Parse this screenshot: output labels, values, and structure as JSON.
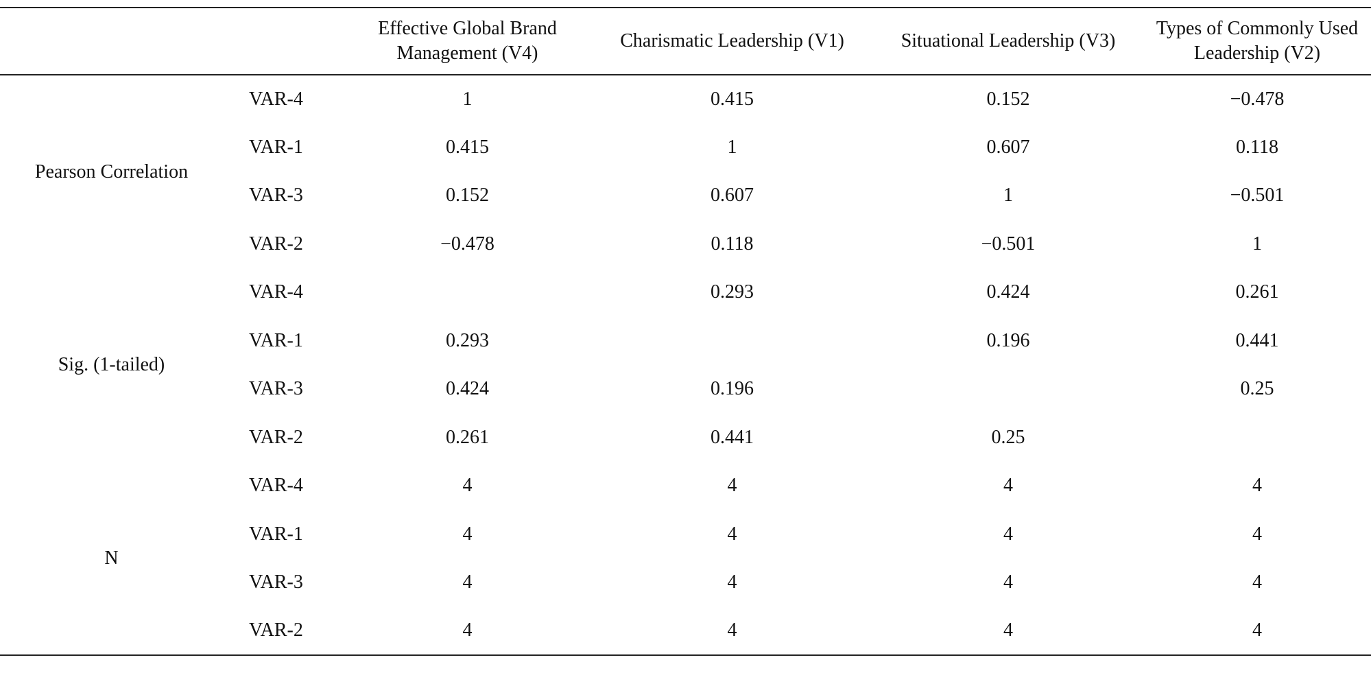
{
  "table": {
    "header": [
      "Effective Global Brand Management (V4)",
      "Charismatic Leadership (V1)",
      "Situational Leadership (V3)",
      "Types of Commonly Used Leadership (V2)"
    ],
    "groups": [
      {
        "label": "Pearson Correlation",
        "rows": [
          {
            "var": "VAR-4",
            "cells": [
              "1",
              "0.415",
              "0.152",
              "−0.478"
            ]
          },
          {
            "var": "VAR-1",
            "cells": [
              "0.415",
              "1",
              "0.607",
              "0.118"
            ]
          },
          {
            "var": "VAR-3",
            "cells": [
              "0.152",
              "0.607",
              "1",
              "−0.501"
            ]
          },
          {
            "var": "VAR-2",
            "cells": [
              "−0.478",
              "0.118",
              "−0.501",
              "1"
            ]
          }
        ]
      },
      {
        "label": "Sig. (1-tailed)",
        "rows": [
          {
            "var": "VAR-4",
            "cells": [
              null,
              "0.293",
              "0.424",
              "0.261"
            ]
          },
          {
            "var": "VAR-1",
            "cells": [
              "0.293",
              null,
              "0.196",
              "0.441"
            ]
          },
          {
            "var": "VAR-3",
            "cells": [
              "0.424",
              "0.196",
              null,
              "0.25"
            ]
          },
          {
            "var": "VAR-2",
            "cells": [
              "0.261",
              "0.441",
              "0.25",
              null
            ]
          }
        ]
      },
      {
        "label": "N",
        "rows": [
          {
            "var": "VAR-4",
            "cells": [
              "4",
              "4",
              "4",
              "4"
            ]
          },
          {
            "var": "VAR-1",
            "cells": [
              "4",
              "4",
              "4",
              "4"
            ]
          },
          {
            "var": "VAR-3",
            "cells": [
              "4",
              "4",
              "4",
              "4"
            ]
          },
          {
            "var": "VAR-2",
            "cells": [
              "4",
              "4",
              "4",
              "4"
            ]
          }
        ]
      }
    ]
  }
}
